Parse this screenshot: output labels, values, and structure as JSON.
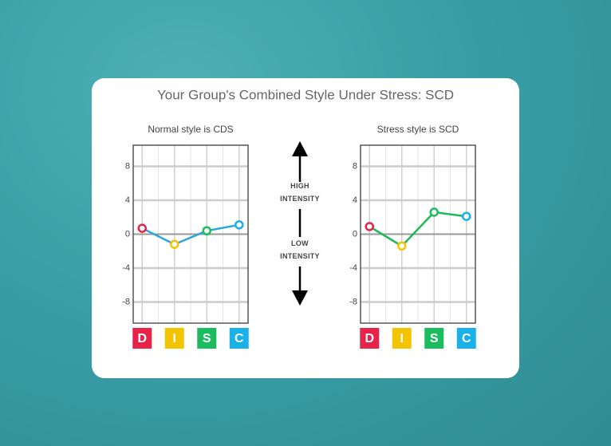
{
  "title": "Your Group's Combined Style Under Stress: SCD",
  "intensity_labels": {
    "high": "HIGH INTENSITY",
    "low": "LOW INTENSITY"
  },
  "chart_data": [
    {
      "type": "line",
      "title": "Normal style is CDS",
      "categories": [
        "D",
        "I",
        "S",
        "C"
      ],
      "values": [
        0.7,
        -1.2,
        0.4,
        1.1
      ],
      "color": "#2aa7dc",
      "category_colors": [
        "#e8234a",
        "#f5c400",
        "#1bbc5e",
        "#1ab0e8"
      ],
      "ylim": [
        -10.5,
        10.5
      ],
      "yticks": [
        -8,
        -4,
        0,
        4,
        8
      ],
      "grid": true
    },
    {
      "type": "line",
      "title": "Stress style is SCD",
      "categories": [
        "D",
        "I",
        "S",
        "C"
      ],
      "values": [
        0.9,
        -1.4,
        2.6,
        2.1
      ],
      "color": "#1db954",
      "category_colors": [
        "#e8234a",
        "#f5c400",
        "#1bbc5e",
        "#1ab0e8"
      ],
      "ylim": [
        -10.5,
        10.5
      ],
      "yticks": [
        -8,
        -4,
        0,
        4,
        8
      ],
      "grid": true
    }
  ]
}
